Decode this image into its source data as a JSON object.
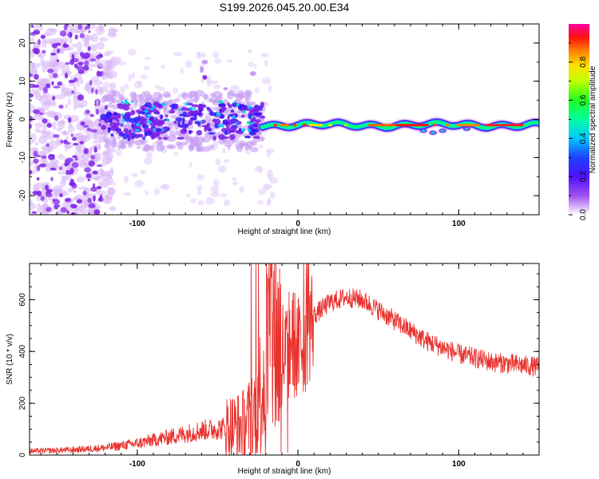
{
  "title": "S199.2026.045.20.00.E34",
  "colors": {
    "snr_line": "#e8322e",
    "axis": "#000000",
    "colormap": [
      "#e2c8f8",
      "#7a1ee6",
      "#2020ff",
      "#00c8ff",
      "#00ff80",
      "#ffff00",
      "#ff8000",
      "#ff0000",
      "#ff00a0"
    ]
  },
  "chart_data": [
    {
      "id": "spectrogram",
      "type": "heatmap",
      "xlabel": "Height of straight line (km)",
      "ylabel": "Frequency (Hz)",
      "xlim": [
        -167,
        150
      ],
      "ylim": [
        -25,
        25
      ],
      "x_ticks": [
        -100,
        0,
        100
      ],
      "y_ticks": [
        -20,
        -10,
        0,
        10,
        20
      ],
      "colorbar": {
        "label": "Normalized spectral amplitude",
        "ticks": [
          "0.0",
          "0.2",
          "0.4",
          "0.6",
          "0.8"
        ],
        "range": [
          0,
          1
        ]
      },
      "regions": [
        {
          "name": "noise",
          "x_range": [
            -167,
            -122
          ],
          "freq_range": [
            -25,
            25
          ],
          "amplitude": 0.06
        },
        {
          "name": "scatter",
          "x_range": [
            -122,
            -22
          ],
          "freq_range": [
            -8,
            7
          ],
          "amplitude": 0.25
        },
        {
          "name": "tone",
          "x_range": [
            -22,
            150
          ],
          "freq_center": -1.5,
          "amplitude": 0.9
        }
      ]
    },
    {
      "id": "snr",
      "type": "line",
      "xlabel": "Height of straight line (km)",
      "ylabel": "SNR (10 * v/v)",
      "xlim": [
        -167,
        150
      ],
      "ylim": [
        0,
        740
      ],
      "x_ticks": [
        -100,
        0,
        100
      ],
      "y_ticks": [
        0,
        200,
        400,
        600
      ],
      "envelope_x": [
        -167,
        -140,
        -120,
        -100,
        -80,
        -60,
        -45,
        -35,
        -28,
        -22,
        -18,
        -12,
        -8,
        -4,
        0,
        5,
        10,
        20,
        30,
        40,
        60,
        80,
        100,
        120,
        150
      ],
      "envelope_y": [
        15,
        20,
        28,
        45,
        70,
        95,
        105,
        110,
        150,
        280,
        430,
        440,
        380,
        450,
        400,
        460,
        540,
        590,
        610,
        600,
        520,
        440,
        390,
        360,
        340
      ]
    }
  ]
}
